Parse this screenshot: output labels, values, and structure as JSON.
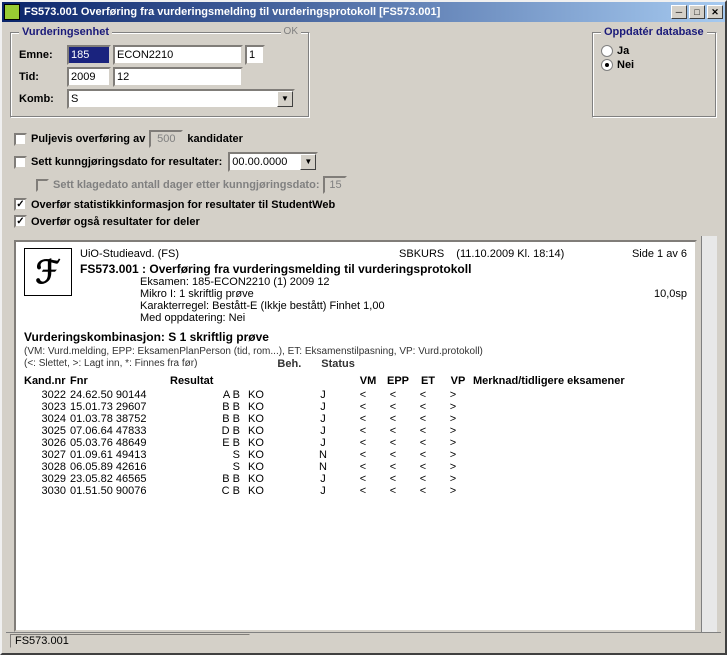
{
  "titlebar": "FS573.001 Overføring fra vurderingsmelding til vurderingsprotokoll [FS573.001]",
  "group_vurd": {
    "title": "Vurderingsenhet",
    "ok": "OK"
  },
  "labels": {
    "emne": "Emne:",
    "tid": "Tid:",
    "komb": "Komb:"
  },
  "fields": {
    "inst": "185",
    "emne": "ECON2210",
    "ver": "1",
    "aar": "2009",
    "tp": "12",
    "komb": "S"
  },
  "group_db": {
    "title": "Oppdatér database",
    "ja": "Ja",
    "nei": "Nei"
  },
  "opts": {
    "puljevis_pre": "Puljevis overføring av",
    "puljevis_val": "500",
    "puljevis_post": "kandidater",
    "kunn": "Sett kunngjøringsdato for resultater:",
    "kunn_val": "00.00.0000",
    "klage": "Sett klagedato antall dager etter kunngjøringsdato:",
    "klage_val": "15",
    "stat": "Overfør statistikkinformasjon for resultater til StudentWeb",
    "deler": "Overfør også resultater for deler"
  },
  "report": {
    "org": "UiO-Studieavd. (FS)",
    "user": "SBKURS",
    "when": "(11.10.2009 Kl. 18:14)",
    "page": "Side 1 av 6",
    "title": "FS573.001 :  Overføring fra vurderingsmelding til vurderingsprotokoll",
    "eksamen": "Eksamen: 185-ECON2210 (1) 2009 12",
    "mikro": "Mikro I: 1 skriftlig prøve",
    "sp": "10,0sp",
    "karakter": "Karakterregel: Bestått-E (Ikkje bestått) Finhet 1,00",
    "oppd": "Med oppdatering: Nei",
    "section": "Vurderingskombinasjon: S 1 skriftlig prøve",
    "legend1": "(VM: Vurd.melding, EPP: EksamenPlanPerson (tid, rom...), ET: Eksamenstilpasning, VP: Vurd.protokoll)",
    "legend2": "(<: Slettet, >: Lagt inn, *: Finnes fra før)",
    "hdr": {
      "kand": "Kand.nr",
      "fnr": "Fnr",
      "res": "Resultat",
      "beh": "Beh.",
      "stat": "Status",
      "vm": "VM",
      "epp": "EPP",
      "et": "ET",
      "vp": "VP",
      "merk": "Merknad/tidligere eksamener"
    },
    "rows": [
      {
        "k": "3022",
        "f": "24.62.50 90144",
        "r": "A B",
        "b": "KO",
        "s": "J",
        "vm": "<",
        "ep": "<",
        "et": "<",
        "vp": ">"
      },
      {
        "k": "3023",
        "f": "15.01.73 29607",
        "r": "B B",
        "b": "KO",
        "s": "J",
        "vm": "<",
        "ep": "<",
        "et": "<",
        "vp": ">"
      },
      {
        "k": "3024",
        "f": "01.03.78 38752",
        "r": "B B",
        "b": "KO",
        "s": "J",
        "vm": "<",
        "ep": "<",
        "et": "<",
        "vp": ">"
      },
      {
        "k": "3025",
        "f": "07.06.64 47833",
        "r": "D B",
        "b": "KO",
        "s": "J",
        "vm": "<",
        "ep": "<",
        "et": "<",
        "vp": ">"
      },
      {
        "k": "3026",
        "f": "05.03.76 48649",
        "r": "E B",
        "b": "KO",
        "s": "J",
        "vm": "<",
        "ep": "<",
        "et": "<",
        "vp": ">"
      },
      {
        "k": "3027",
        "f": "01.09.61 49413",
        "r": "S",
        "b": "KO",
        "s": "N",
        "vm": "<",
        "ep": "<",
        "et": "<",
        "vp": ">"
      },
      {
        "k": "3028",
        "f": "06.05.89 42616",
        "r": "S",
        "b": "KO",
        "s": "N",
        "vm": "<",
        "ep": "<",
        "et": "<",
        "vp": ">"
      },
      {
        "k": "3029",
        "f": "23.05.82 46565",
        "r": "B B",
        "b": "KO",
        "s": "J",
        "vm": "<",
        "ep": "<",
        "et": "<",
        "vp": ">"
      },
      {
        "k": "3030",
        "f": "01.51.50 90076",
        "r": "C B",
        "b": "KO",
        "s": "J",
        "vm": "<",
        "ep": "<",
        "et": "<",
        "vp": ">"
      }
    ]
  },
  "status": "FS573.001"
}
